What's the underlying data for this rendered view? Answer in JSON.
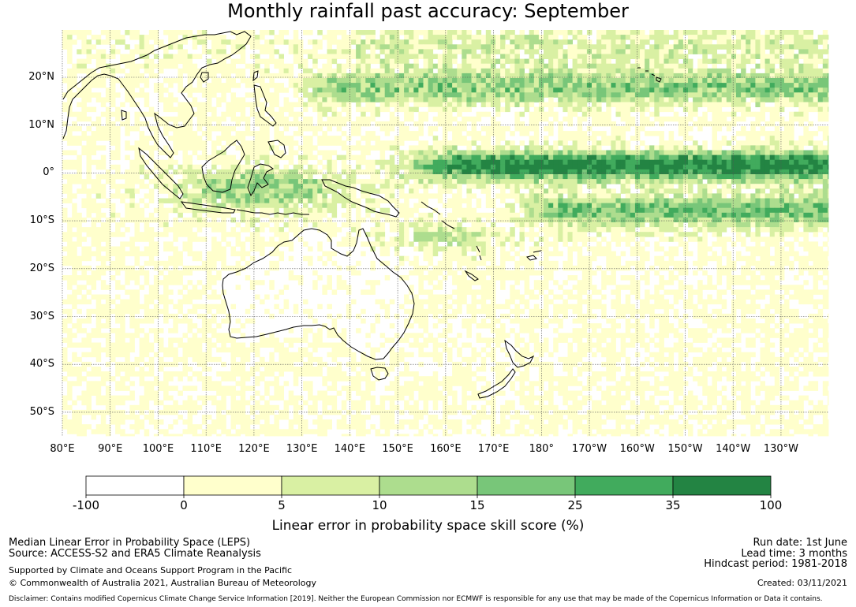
{
  "title": "Monthly rainfall past accuracy: September",
  "map": {
    "lat_ticks": [
      "20°N",
      "10°N",
      "0°",
      "10°S",
      "20°S",
      "30°S",
      "40°S",
      "50°S"
    ],
    "lon_ticks": [
      "80°E",
      "90°E",
      "100°E",
      "110°E",
      "120°E",
      "130°E",
      "140°E",
      "150°E",
      "160°E",
      "170°E",
      "180°",
      "170°W",
      "160°W",
      "150°W",
      "140°W",
      "130°W"
    ],
    "coastline_color": "#000000",
    "grid": true
  },
  "colorbar": {
    "boundaries": [
      "-100",
      "0",
      "5",
      "10",
      "15",
      "25",
      "35",
      "100"
    ],
    "colors": [
      "#ffffff",
      "#ffffcc",
      "#d9f0a3",
      "#addd8e",
      "#78c679",
      "#41ab5d",
      "#238443"
    ],
    "label": "Linear error in probability space skill score (%)"
  },
  "footer": {
    "method": "Median Linear Error in Probability Space (LEPS)",
    "source": "Source: ACCESS-S2 and ERA5 Climate Reanalysis",
    "support": "Supported by Climate and Oceans Support Program in the Pacific",
    "copyright": "© Commonwealth of Australia 2021, Australian Bureau of Meteorology",
    "run_date": "Run date: 1st June",
    "lead_time": "Lead time: 3 months",
    "hindcast": "Hindcast period: 1981-2018",
    "created": "Created: 03/11/2021",
    "disclaimer": "Disclaimer: Contains modified Copernicus Climate Change Service Information [2019]. Neither the European Commission nor ECMWF is responsible for any use that may be made of the Copernicus Information or Data it contains."
  }
}
